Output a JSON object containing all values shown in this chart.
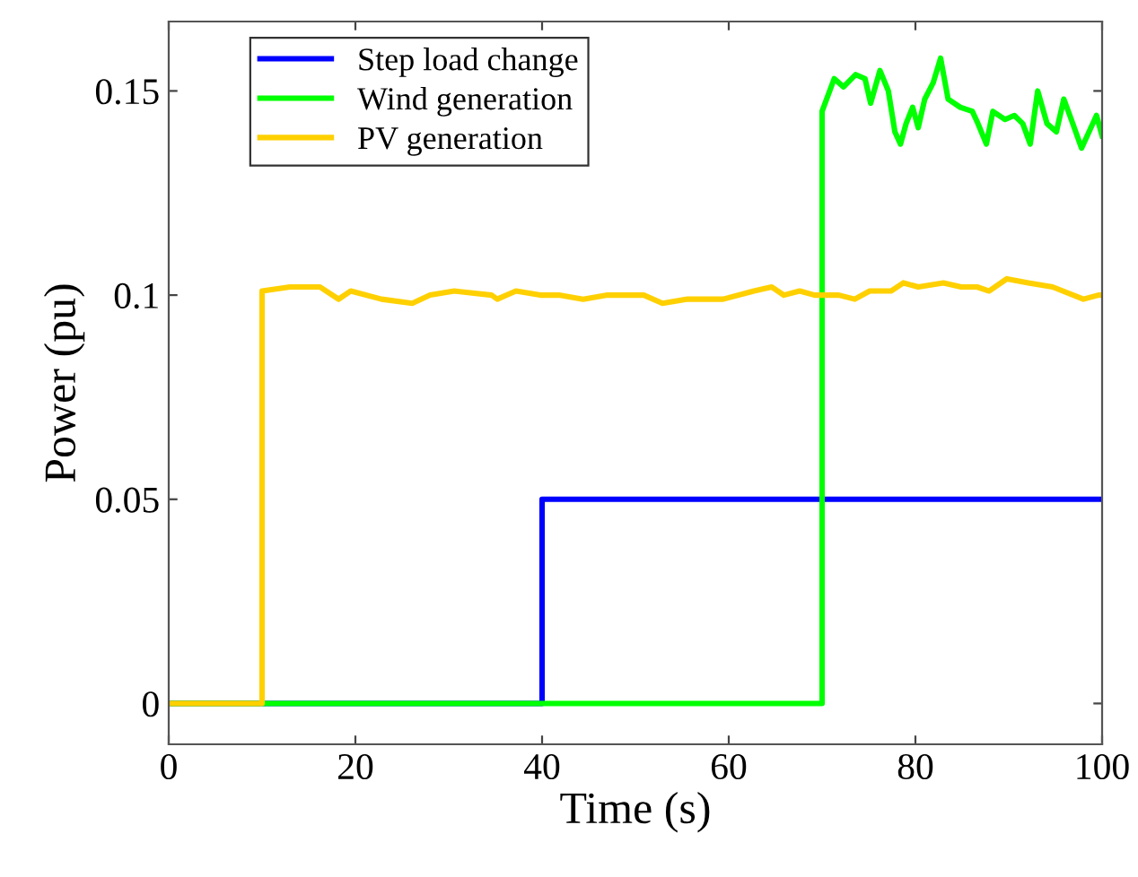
{
  "chart_data": {
    "type": "line",
    "xlabel": "Time (s)",
    "ylabel": "Power (pu)",
    "xlim": [
      0,
      100
    ],
    "xticks": [
      0,
      20,
      40,
      60,
      80,
      100
    ],
    "ylim": [
      -0.01,
      0.167
    ],
    "yticks": [
      0,
      0.05,
      0.1,
      0.15
    ],
    "grid": false,
    "legend": "top left",
    "line_style": "solid",
    "marker": "none",
    "series": [
      {
        "name": "Step load change",
        "color": "#0000ff",
        "x": [
          0,
          40,
          40,
          100
        ],
        "values": [
          0,
          0,
          0.05,
          0.05
        ]
      },
      {
        "name": "Wind generation",
        "color": "#00ff00",
        "x": [
          0,
          70,
          70,
          71.3,
          72.3,
          73.6,
          74.6,
          75.2,
          76.2,
          77.1,
          77.8,
          78.4,
          79.0,
          79.7,
          80.3,
          81.0,
          81.9,
          82.7,
          83.5,
          84.8,
          86.1,
          86.7,
          87.6,
          88.3,
          89.6,
          90.6,
          91.5,
          92.3,
          93.1,
          94.1,
          95.1,
          95.9,
          96.7,
          97.8,
          98.6,
          99.4,
          100
        ],
        "values": [
          0,
          0,
          0.145,
          0.153,
          0.151,
          0.154,
          0.153,
          0.147,
          0.155,
          0.15,
          0.14,
          0.137,
          0.142,
          0.146,
          0.141,
          0.148,
          0.152,
          0.158,
          0.148,
          0.146,
          0.145,
          0.142,
          0.137,
          0.145,
          0.143,
          0.144,
          0.142,
          0.137,
          0.15,
          0.142,
          0.14,
          0.148,
          0.143,
          0.136,
          0.14,
          0.144,
          0.139
        ]
      },
      {
        "name": "PV generation",
        "color": "#ffd000",
        "x": [
          0,
          10,
          10,
          13.0,
          14.9,
          16.2,
          18.2,
          19.5,
          22.8,
          26.1,
          28.0,
          30.6,
          34.6,
          35.2,
          37.2,
          39.8,
          41.8,
          44.4,
          47.0,
          50.9,
          52.9,
          55.5,
          59.4,
          62.7,
          64.6,
          65.9,
          67.6,
          69.2,
          71.8,
          73.5,
          75.1,
          77.4,
          78.7,
          80.3,
          83.0,
          84.9,
          86.6,
          87.9,
          89.8,
          92.1,
          94.7,
          98.0,
          99.6,
          100
        ],
        "values": [
          0,
          0,
          0.101,
          0.102,
          0.102,
          0.102,
          0.099,
          0.101,
          0.099,
          0.098,
          0.1,
          0.101,
          0.1,
          0.099,
          0.101,
          0.1,
          0.1,
          0.099,
          0.1,
          0.1,
          0.098,
          0.099,
          0.099,
          0.101,
          0.102,
          0.1,
          0.101,
          0.1,
          0.1,
          0.099,
          0.101,
          0.101,
          0.103,
          0.102,
          0.103,
          0.102,
          0.102,
          0.101,
          0.104,
          0.103,
          0.102,
          0.099,
          0.1,
          0.1
        ]
      }
    ]
  }
}
